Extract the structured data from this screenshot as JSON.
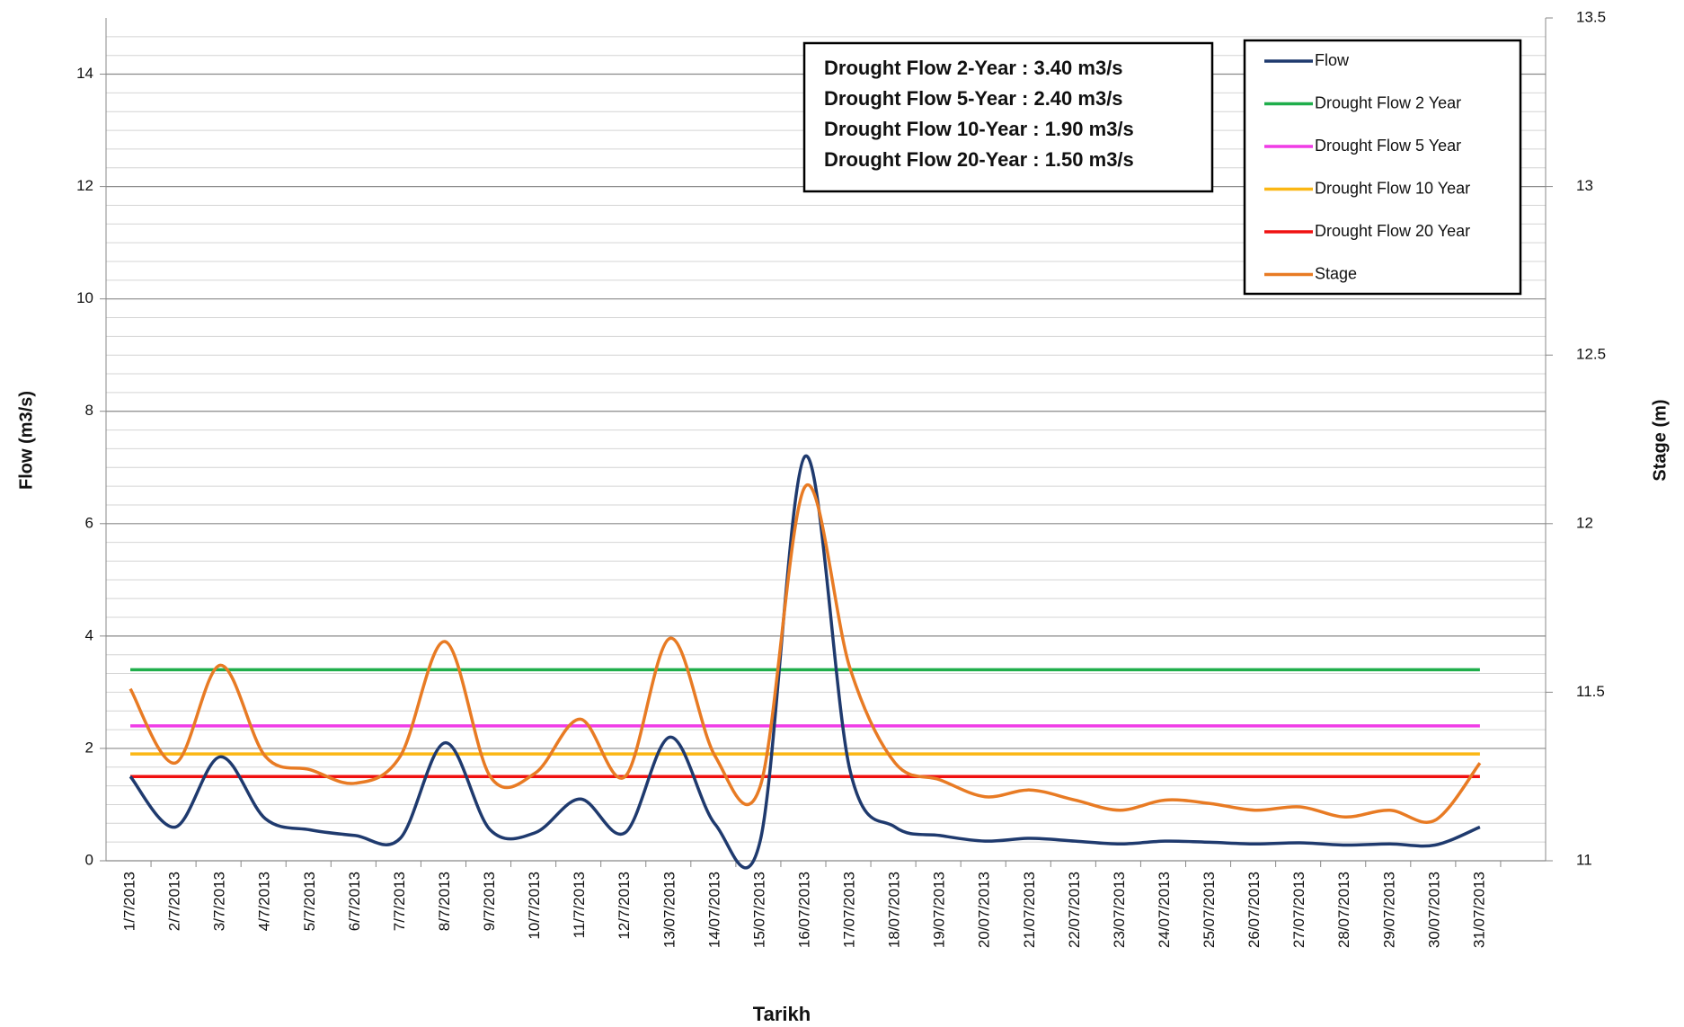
{
  "chart_data": {
    "type": "line",
    "x_label": "Tarikh",
    "y_label": "Flow (m3/s)",
    "y2_label": "Stage (m)",
    "categories": [
      "1/7/2013",
      "2/7/2013",
      "3/7/2013",
      "4/7/2013",
      "5/7/2013",
      "6/7/2013",
      "7/7/2013",
      "8/7/2013",
      "9/7/2013",
      "10/7/2013",
      "11/7/2013",
      "12/7/2013",
      "13/07/2013",
      "14/07/2013",
      "15/07/2013",
      "16/07/2013",
      "17/07/2013",
      "18/07/2013",
      "19/07/2013",
      "20/07/2013",
      "21/07/2013",
      "22/07/2013",
      "23/07/2013",
      "24/07/2013",
      "25/07/2013",
      "26/07/2013",
      "27/07/2013",
      "28/07/2013",
      "29/07/2013",
      "30/07/2013",
      "31/07/2013"
    ],
    "series": [
      {
        "name": "Flow",
        "color": "#1f3a6e",
        "axis": "y",
        "values": [
          1.5,
          0.6,
          1.85,
          0.75,
          0.55,
          0.45,
          0.4,
          2.1,
          0.55,
          0.5,
          1.1,
          0.5,
          2.2,
          0.65,
          0.35,
          7.2,
          1.6,
          0.6,
          0.45,
          0.35,
          0.4,
          0.35,
          0.3,
          0.35,
          0.33,
          0.3,
          0.32,
          0.28,
          0.3,
          0.28,
          0.6
        ]
      },
      {
        "name": "Drought Flow 2 Year",
        "color": "#1fae4b",
        "axis": "y",
        "values": [
          3.4,
          3.4,
          3.4,
          3.4,
          3.4,
          3.4,
          3.4,
          3.4,
          3.4,
          3.4,
          3.4,
          3.4,
          3.4,
          3.4,
          3.4,
          3.4,
          3.4,
          3.4,
          3.4,
          3.4,
          3.4,
          3.4,
          3.4,
          3.4,
          3.4,
          3.4,
          3.4,
          3.4,
          3.4,
          3.4,
          3.4
        ]
      },
      {
        "name": "Drought Flow 5 Year",
        "color": "#f03ce6",
        "axis": "y",
        "values": [
          2.4,
          2.4,
          2.4,
          2.4,
          2.4,
          2.4,
          2.4,
          2.4,
          2.4,
          2.4,
          2.4,
          2.4,
          2.4,
          2.4,
          2.4,
          2.4,
          2.4,
          2.4,
          2.4,
          2.4,
          2.4,
          2.4,
          2.4,
          2.4,
          2.4,
          2.4,
          2.4,
          2.4,
          2.4,
          2.4,
          2.4
        ]
      },
      {
        "name": "Drought Flow 10 Year",
        "color": "#fbb714",
        "axis": "y",
        "values": [
          1.9,
          1.9,
          1.9,
          1.9,
          1.9,
          1.9,
          1.9,
          1.9,
          1.9,
          1.9,
          1.9,
          1.9,
          1.9,
          1.9,
          1.9,
          1.9,
          1.9,
          1.9,
          1.9,
          1.9,
          1.9,
          1.9,
          1.9,
          1.9,
          1.9,
          1.9,
          1.9,
          1.9,
          1.9,
          1.9,
          1.9
        ]
      },
      {
        "name": "Drought Flow 20 Year",
        "color": "#f01010",
        "axis": "y",
        "values": [
          1.5,
          1.5,
          1.5,
          1.5,
          1.5,
          1.5,
          1.5,
          1.5,
          1.5,
          1.5,
          1.5,
          1.5,
          1.5,
          1.5,
          1.5,
          1.5,
          1.5,
          1.5,
          1.5,
          1.5,
          1.5,
          1.5,
          1.5,
          1.5,
          1.5,
          1.5,
          1.5,
          1.5,
          1.5,
          1.5,
          1.5
        ]
      },
      {
        "name": "Stage",
        "color": "#e87b24",
        "axis": "y2",
        "values": [
          11.51,
          11.29,
          11.58,
          11.31,
          11.27,
          11.23,
          11.31,
          11.65,
          11.25,
          11.26,
          11.42,
          11.25,
          11.66,
          11.31,
          11.22,
          12.11,
          11.57,
          11.29,
          11.24,
          11.19,
          11.21,
          11.18,
          11.15,
          11.18,
          11.17,
          11.15,
          11.16,
          11.13,
          11.15,
          11.12,
          11.29
        ]
      }
    ],
    "annotations": [
      {
        "text": "Drought Flow 2-Year : 3.40 m3/s",
        "color": "#1fae4b"
      },
      {
        "text": "Drought Flow 5-Year : 2.40 m3/s",
        "color": "#f03ce6"
      },
      {
        "text": "Drought Flow 10-Year : 1.90 m3/s",
        "color": "#fbb714"
      },
      {
        "text": "Drought Flow 20-Year : 1.50 m3/s",
        "color": "#f01010"
      }
    ],
    "ylim": [
      0,
      15
    ],
    "yticks": [
      0,
      2,
      4,
      6,
      8,
      10,
      12,
      14
    ],
    "y2lim": [
      11,
      13.5
    ],
    "y2ticks": [
      11,
      11.5,
      12,
      12.5,
      13,
      13.5
    ],
    "grid": true,
    "legend": "top-right"
  }
}
